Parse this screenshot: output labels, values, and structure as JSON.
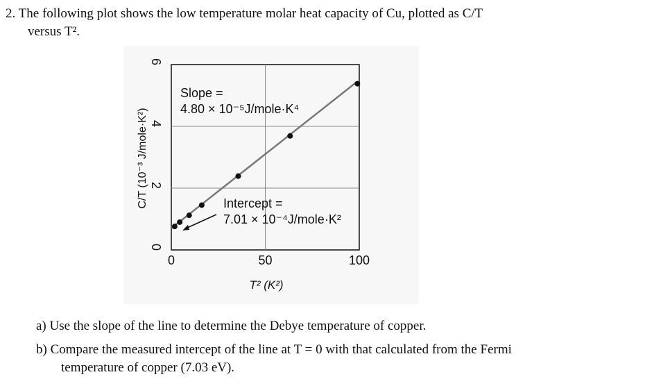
{
  "problem": {
    "number": "2.",
    "intro_line1": "The following plot shows the low temperature molar heat capacity of Cu, plotted as C/T",
    "intro_line2": "versus T².",
    "part_a": "a) Use the slope of the line to determine the Debye temperature of copper.",
    "part_b_line1": "b) Compare the measured intercept of the line at T = 0 with that calculated from the Fermi",
    "part_b_line2": "temperature of copper (7.03 eV)."
  },
  "chart_data": {
    "type": "scatter",
    "xlabel": "T² (K²)",
    "ylabel": "C/T (10⁻³ J/mole·K²)",
    "xlim": [
      0,
      100
    ],
    "ylim": [
      0,
      6
    ],
    "xticks": [
      "0",
      "50",
      "100"
    ],
    "yticks": [
      "0",
      "2",
      "4",
      "6"
    ],
    "grid": true,
    "x": [
      1.8,
      4.5,
      9.5,
      16.2,
      35.6,
      63.2,
      99
    ],
    "y": [
      0.76,
      0.9,
      1.12,
      1.45,
      2.39,
      3.69,
      5.38
    ],
    "fit_line": {
      "intercept": 0.701,
      "slope": 0.048
    },
    "annotations": {
      "slope_label": "Slope =",
      "slope_value": "4.80 × 10⁻⁵J/mole·K⁴",
      "intercept_label": "Intercept =",
      "intercept_value": "7.01 × 10⁻⁴J/mole·K²"
    },
    "colors": {
      "line": "#777777",
      "points": "#111111",
      "grid": "#888888"
    }
  }
}
